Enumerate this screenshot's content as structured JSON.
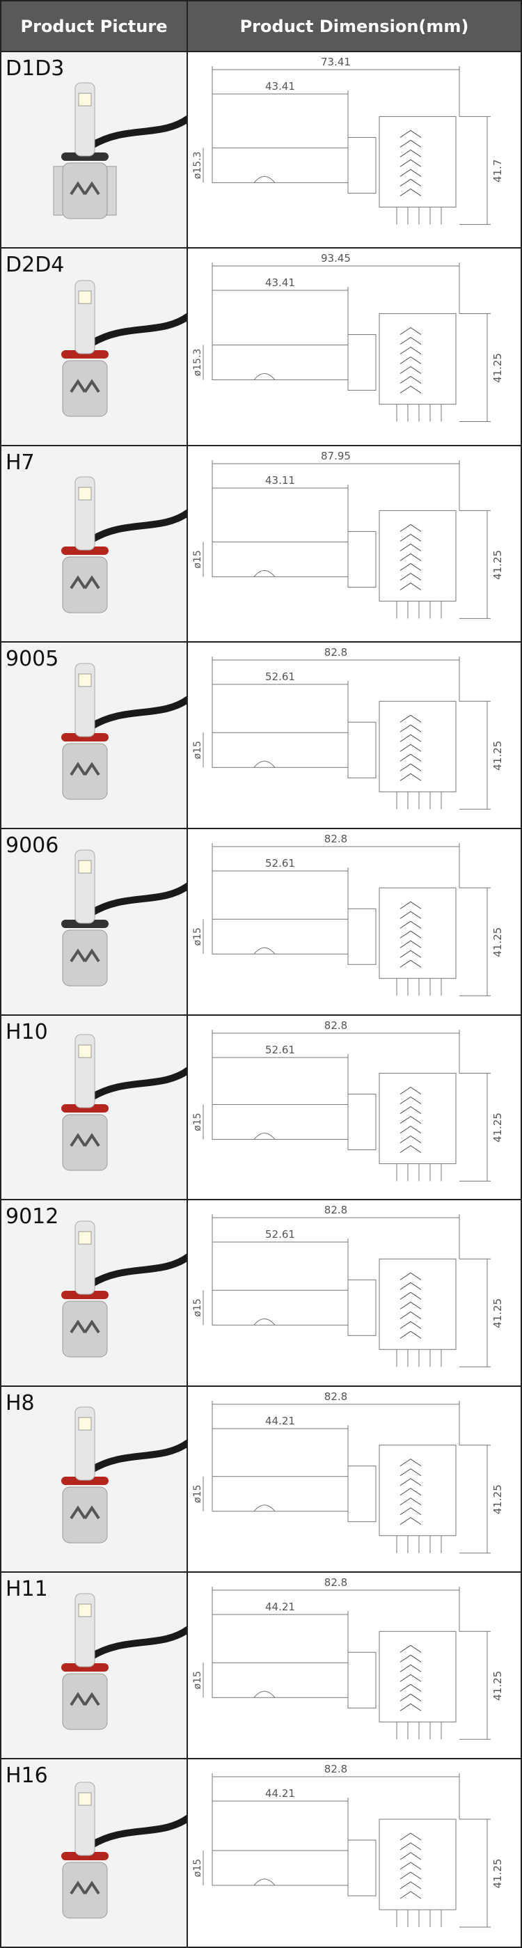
{
  "header": {
    "col1": "Product Picture",
    "col2": "Product Dimension(mm)"
  },
  "rows": [
    {
      "model": "D1D3",
      "overall": "73.41",
      "inner": "43.41",
      "diameter": "ø15.3",
      "height": "41.7"
    },
    {
      "model": "D2D4",
      "overall": "93.45",
      "inner": "43.41",
      "diameter": "ø15.3",
      "height": "41.25"
    },
    {
      "model": "H7",
      "overall": "87.95",
      "inner": "43.11",
      "diameter": "ø15",
      "height": "41.25"
    },
    {
      "model": "9005",
      "overall": "82.8",
      "inner": "52.61",
      "diameter": "ø15",
      "height": "41.25"
    },
    {
      "model": "9006",
      "overall": "82.8",
      "inner": "52.61",
      "diameter": "ø15",
      "height": "41.25"
    },
    {
      "model": "H10",
      "overall": "82.8",
      "inner": "52.61",
      "diameter": "ø15",
      "height": "41.25"
    },
    {
      "model": "9012",
      "overall": "82.8",
      "inner": "52.61",
      "diameter": "ø15",
      "height": "41.25"
    },
    {
      "model": "H8",
      "overall": "82.8",
      "inner": "44.21",
      "diameter": "ø15",
      "height": "41.25"
    },
    {
      "model": "H11",
      "overall": "82.8",
      "inner": "44.21",
      "diameter": "ø15",
      "height": "41.25"
    },
    {
      "model": "H16",
      "overall": "82.8",
      "inner": "44.21",
      "diameter": "ø15",
      "height": "41.25"
    }
  ]
}
